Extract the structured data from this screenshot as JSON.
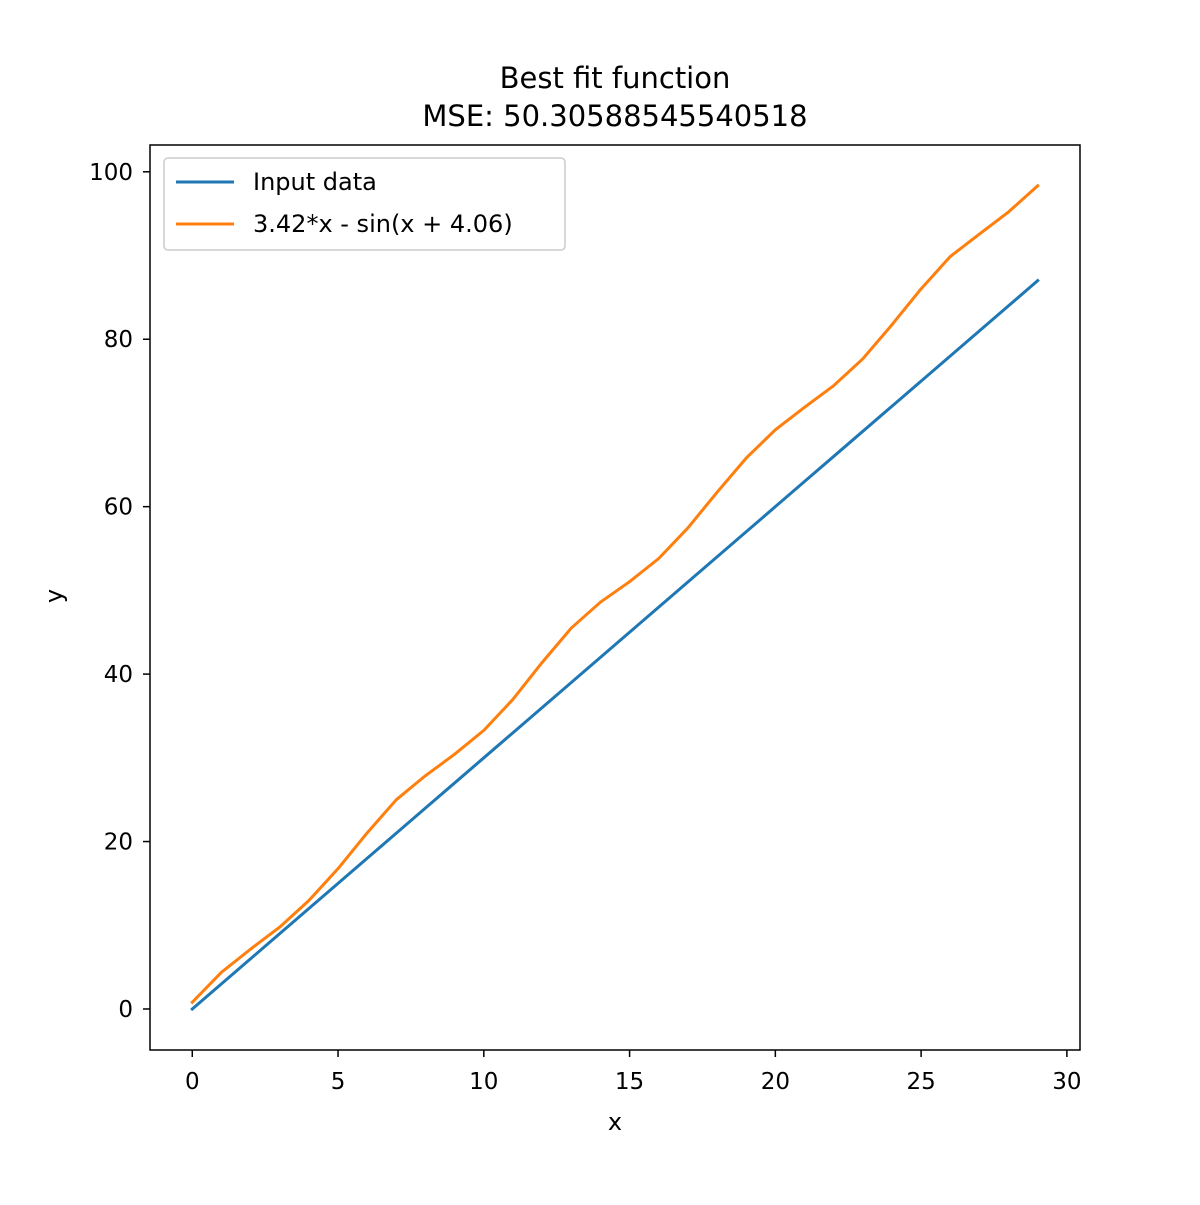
{
  "chart_data": {
    "type": "line",
    "title": "Best fit function",
    "subtitle": "MSE: 50.30588545540518",
    "xlabel": "x",
    "ylabel": "y",
    "xlim": [
      -1.45,
      30.45
    ],
    "ylim": [
      -4.9,
      103.2
    ],
    "xticks": [
      0,
      5,
      10,
      15,
      20,
      25,
      30
    ],
    "yticks": [
      0,
      20,
      40,
      60,
      80,
      100
    ],
    "grid": false,
    "legend_position": "top-left",
    "x": [
      0,
      1,
      2,
      3,
      4,
      5,
      6,
      7,
      8,
      9,
      10,
      11,
      12,
      13,
      14,
      15,
      16,
      17,
      18,
      19,
      20,
      21,
      22,
      23,
      24,
      25,
      26,
      27,
      28,
      29
    ],
    "series": [
      {
        "name": "Input data",
        "color": "#1f77b4",
        "values": [
          0,
          3,
          6,
          9,
          12,
          15,
          18,
          21,
          24,
          27,
          30,
          33,
          36,
          39,
          42,
          45,
          48,
          51,
          54,
          57,
          60,
          63,
          66,
          69,
          72,
          75,
          78,
          81,
          84,
          87
        ]
      },
      {
        "name": "3.42*x - sin(x + 4.06)",
        "color": "#ff7f0e",
        "values": [
          0.8,
          4.38,
          7.15,
          9.78,
          12.96,
          16.76,
          21.04,
          25.0,
          27.87,
          30.43,
          33.28,
          36.99,
          41.39,
          45.5,
          48.59,
          51.04,
          53.81,
          57.46,
          61.72,
          65.8,
          69.18,
          71.86,
          74.45,
          77.66,
          81.73,
          86.02,
          89.88,
          92.56,
          95.21,
          98.33
        ]
      }
    ]
  }
}
